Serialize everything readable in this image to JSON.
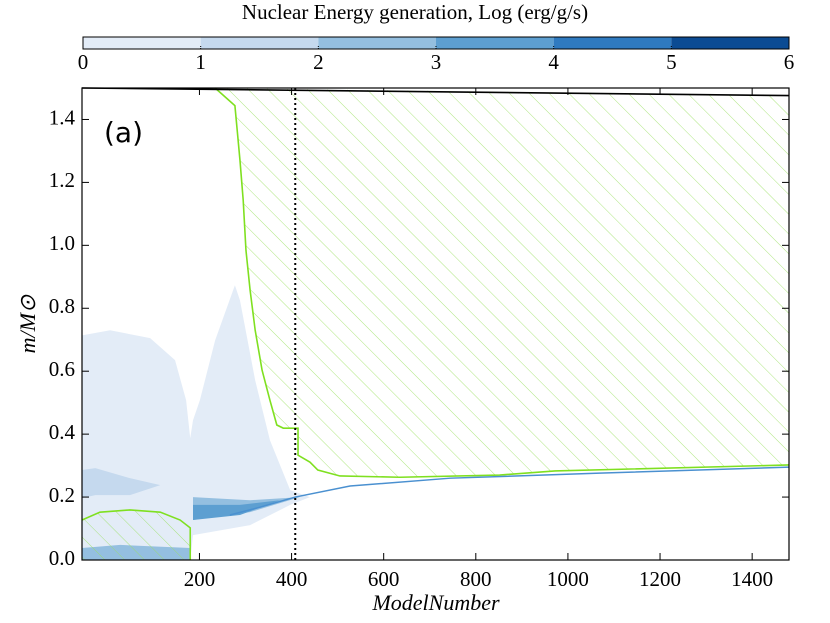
{
  "chart_data": {
    "type": "kippenhahn",
    "xlabel": "ModelNumber",
    "ylabel": "m/M⊙",
    "annotation": "(a)",
    "xlim": [
      -55,
      1480
    ],
    "ylim": [
      0,
      1.5
    ],
    "xticks": [
      200,
      400,
      600,
      800,
      1000,
      1200,
      1400
    ],
    "yticks": [
      {
        "value": 0,
        "label": "0.0"
      },
      {
        "value": 0.2,
        "label": "0.2"
      },
      {
        "value": 0.4,
        "label": "0.4"
      },
      {
        "value": 0.6,
        "label": "0.6"
      },
      {
        "value": 0.8,
        "label": "0.8"
      },
      {
        "value": 1.0,
        "label": "1.0"
      },
      {
        "value": 1.2,
        "label": "1.2"
      },
      {
        "value": 1.4,
        "label": "1.4"
      }
    ],
    "colorbar": {
      "label": "Nuclear Energy generation, Log (erg/g/s)",
      "lim": [
        0,
        6
      ],
      "ticks": [
        0,
        1,
        2,
        3,
        4,
        5,
        6
      ],
      "colors": [
        "#e3ecf7",
        "#c5d9ee",
        "#94bfe0",
        "#5d9fd1",
        "#2f7ac0",
        "#0b4b93"
      ]
    },
    "regions": [
      {
        "level": 0,
        "x": [
          -55,
          6,
          93,
          147,
          171,
          180,
          186,
          201,
          234,
          277,
          288,
          321,
          353,
          397,
          440,
          397,
          310,
          186,
          180,
          -55
        ],
        "y": [
          0.714,
          0.73,
          0.705,
          0.635,
          0.508,
          0.387,
          0.444,
          0.508,
          0.698,
          0.873,
          0.825,
          0.571,
          0.381,
          0.222,
          0.2,
          0.175,
          0.111,
          0.079,
          0,
          0
        ]
      },
      {
        "level": 1,
        "x": [
          -55,
          -26,
          49,
          115,
          49,
          -26,
          -55
        ],
        "y": [
          0.286,
          0.292,
          0.26,
          0.238,
          0.206,
          0.206,
          0.197
        ]
      },
      {
        "level": 2,
        "x": [
          -55,
          28,
          180,
          180,
          -55
        ],
        "y": [
          0.038,
          0.048,
          0.038,
          0,
          0
        ]
      },
      {
        "level": 2,
        "x": [
          186,
          310,
          418,
          310,
          186
        ],
        "y": [
          0.2,
          0.19,
          0.2,
          0.152,
          0.127
        ]
      },
      {
        "level": 3,
        "x": [
          186,
          288,
          375,
          288,
          186
        ],
        "y": [
          0.175,
          0.175,
          0.19,
          0.143,
          0.127
        ]
      }
    ],
    "convective_color": "#7fe020",
    "convective": [
      {
        "x": [
          234,
          277,
          282,
          288,
          295,
          301,
          310,
          321,
          336,
          353,
          368,
          382,
          414,
          414,
          440,
          457,
          505,
          635,
          852,
          972,
          1480
        ],
        "y": [
          1.5,
          1.444,
          1.365,
          1.27,
          1.143,
          0.984,
          0.857,
          0.73,
          0.603,
          0.508,
          0.429,
          0.419,
          0.419,
          0.333,
          0.311,
          0.286,
          0.267,
          0.263,
          0.27,
          0.283,
          0.302
        ],
        "side": "above"
      },
      {
        "x": [
          -55,
          -16,
          49,
          115,
          158,
          180,
          180
        ],
        "y": [
          0.127,
          0.152,
          0.159,
          0.152,
          0.127,
          0.102,
          0
        ],
        "side": "below"
      }
    ],
    "boundary_color": "#4a90d0",
    "boundary": {
      "x": [
        266,
        332,
        408,
        527,
        744,
        1069,
        1480
      ],
      "y": [
        0.143,
        0.168,
        0.2,
        0.235,
        0.26,
        0.276,
        0.295
      ]
    },
    "total_mass": {
      "x": [
        -55,
        1480
      ],
      "y": [
        1.5,
        1.476
      ]
    },
    "vline": 408
  }
}
